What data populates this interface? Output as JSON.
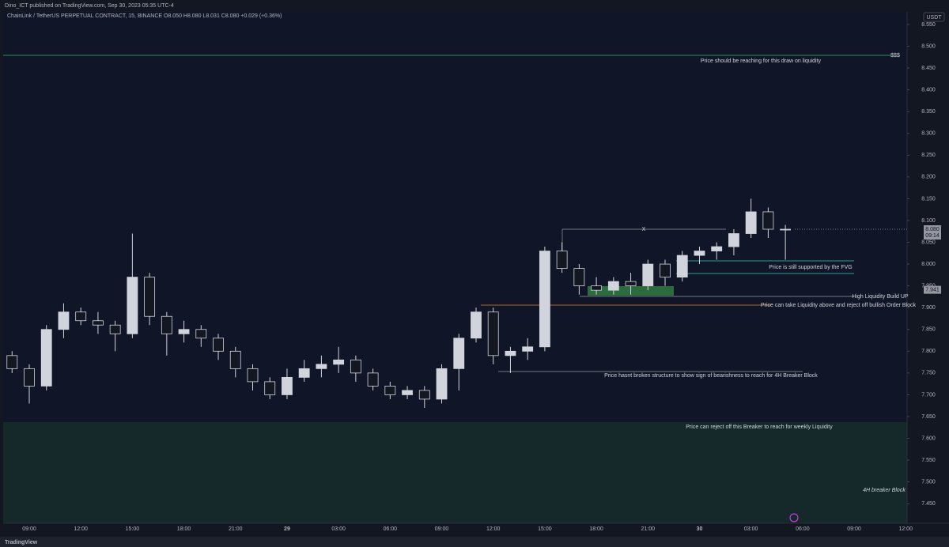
{
  "header": {
    "publisher": "Dino_ICT published on TradingView.com, Sep 30, 2023 05:35 UTC-4",
    "brand": "TradingView"
  },
  "chart_data": {
    "type": "candlestick",
    "title": "ChainLink / TetherUS PERPETUAL CONTRACT, 15, BINANCE  O8.050  H8.080  L8.031  C8.080  +0.029 (+0.36%)",
    "y_axis_label": "USDT",
    "categories": [
      null,
      "09:00",
      null,
      null,
      "12:00",
      null,
      null,
      "15:00",
      null,
      null,
      "18:00",
      null,
      null,
      "21:00",
      null,
      null,
      "29",
      null,
      null,
      "03:00",
      null,
      null,
      "06:00",
      null,
      null,
      "09:00",
      null,
      null,
      "12:00",
      null,
      null,
      "15:00",
      null,
      null,
      "18:00",
      null,
      null,
      "21:00",
      null,
      null,
      "30",
      null,
      null,
      "03:00",
      null,
      null,
      "06:00",
      null,
      null,
      "09:00",
      null,
      null,
      "12:00"
    ],
    "open": [
      7.79,
      7.76,
      7.72,
      7.85,
      7.89,
      7.87,
      7.86,
      7.84,
      7.97,
      7.88,
      7.84,
      7.85,
      7.83,
      7.8,
      7.76,
      7.73,
      7.7,
      7.74,
      7.76,
      7.77,
      7.78,
      7.75,
      7.72,
      7.7,
      7.71,
      7.69,
      7.76,
      7.83,
      7.89,
      7.79,
      7.8,
      7.81,
      8.03,
      7.99,
      7.95,
      7.94,
      7.96,
      7.95,
      8.0,
      7.97,
      8.02,
      8.03,
      8.04,
      8.07,
      8.12,
      8.08,
      null,
      null,
      null,
      null,
      null,
      null,
      null
    ],
    "high": [
      7.8,
      7.77,
      7.86,
      7.91,
      7.9,
      7.89,
      7.87,
      8.07,
      7.98,
      7.89,
      7.87,
      7.86,
      7.84,
      7.81,
      7.77,
      7.74,
      7.76,
      7.78,
      7.79,
      7.81,
      7.79,
      7.76,
      7.73,
      7.72,
      7.72,
      7.77,
      7.84,
      7.9,
      7.9,
      7.81,
      7.83,
      8.04,
      8.05,
      8.0,
      7.97,
      7.97,
      7.98,
      8.01,
      8.01,
      8.03,
      8.04,
      8.05,
      8.08,
      8.15,
      8.13,
      8.09,
      null,
      null,
      null,
      null,
      null,
      null,
      null
    ],
    "low": [
      7.75,
      7.68,
      7.71,
      7.83,
      7.86,
      7.84,
      7.8,
      7.83,
      7.86,
      7.79,
      7.82,
      7.81,
      7.78,
      7.74,
      7.71,
      7.69,
      7.69,
      7.73,
      7.74,
      7.75,
      7.73,
      7.71,
      7.69,
      7.69,
      7.67,
      7.68,
      7.71,
      7.82,
      7.77,
      7.75,
      7.78,
      7.8,
      7.98,
      7.93,
      7.93,
      7.93,
      7.93,
      7.94,
      7.95,
      7.96,
      8.0,
      8.01,
      8.02,
      8.06,
      8.06,
      8.01,
      null,
      null,
      null,
      null,
      null,
      null,
      null
    ],
    "close": [
      7.76,
      7.72,
      7.85,
      7.89,
      7.87,
      7.86,
      7.84,
      7.97,
      7.88,
      7.84,
      7.85,
      7.83,
      7.8,
      7.76,
      7.73,
      7.7,
      7.74,
      7.76,
      7.77,
      7.78,
      7.75,
      7.72,
      7.7,
      7.71,
      7.69,
      7.76,
      7.83,
      7.89,
      7.79,
      7.8,
      7.81,
      8.03,
      7.99,
      7.95,
      7.94,
      7.96,
      7.95,
      8.0,
      7.97,
      8.02,
      8.03,
      8.04,
      8.07,
      8.12,
      8.08,
      8.08,
      null,
      null,
      null,
      null,
      null,
      null,
      null
    ],
    "up_color": "#d1d4dc",
    "down_color": "#131722",
    "grid": false,
    "ylim": [
      7.405,
      8.579
    ],
    "yticks": [
      {
        "value": 7.45,
        "label": "7.450"
      },
      {
        "value": 7.5,
        "label": "7.500"
      },
      {
        "value": 7.55,
        "label": "7.550"
      },
      {
        "value": 7.6,
        "label": "7.600"
      },
      {
        "value": 7.65,
        "label": "7.650"
      },
      {
        "value": 7.7,
        "label": "7.700"
      },
      {
        "value": 7.75,
        "label": "7.750"
      },
      {
        "value": 7.8,
        "label": "7.800"
      },
      {
        "value": 7.85,
        "label": "7.850"
      },
      {
        "value": 7.9,
        "label": "7.900"
      },
      {
        "value": 7.95,
        "label": "7.950"
      },
      {
        "value": 8.0,
        "label": "8.000"
      },
      {
        "value": 8.05,
        "label": "8.050"
      },
      {
        "value": 8.1,
        "label": "8.100"
      },
      {
        "value": 8.15,
        "label": "8.150"
      },
      {
        "value": 8.2,
        "label": "8.200"
      },
      {
        "value": 8.25,
        "label": "8.250"
      },
      {
        "value": 8.3,
        "label": "8.300"
      },
      {
        "value": 8.35,
        "label": "8.350"
      },
      {
        "value": 8.4,
        "label": "8.400"
      },
      {
        "value": 8.45,
        "label": "8.450"
      },
      {
        "value": 8.5,
        "label": "8.500"
      },
      {
        "value": 8.55,
        "label": "8.550"
      }
    ],
    "last_price": {
      "value": 8.08,
      "label": "8.080"
    },
    "countdown": "09:14",
    "marker_price": {
      "value": 7.941,
      "label": "7.941"
    },
    "annotations": [
      "$$$",
      "Price should be reaching for this draw on liquidity",
      "X",
      "Price is still supported by the FVG",
      "High Liquidity Build UP",
      "Price can take Liquidity above and reject off bullish Order Block",
      "Price hasnt broken structure to show sign of bearishness to reach for 4H Breaker Block",
      "Price can reject off this Breaker to reach for weekly Liquidity",
      "4H breaker Block"
    ]
  }
}
